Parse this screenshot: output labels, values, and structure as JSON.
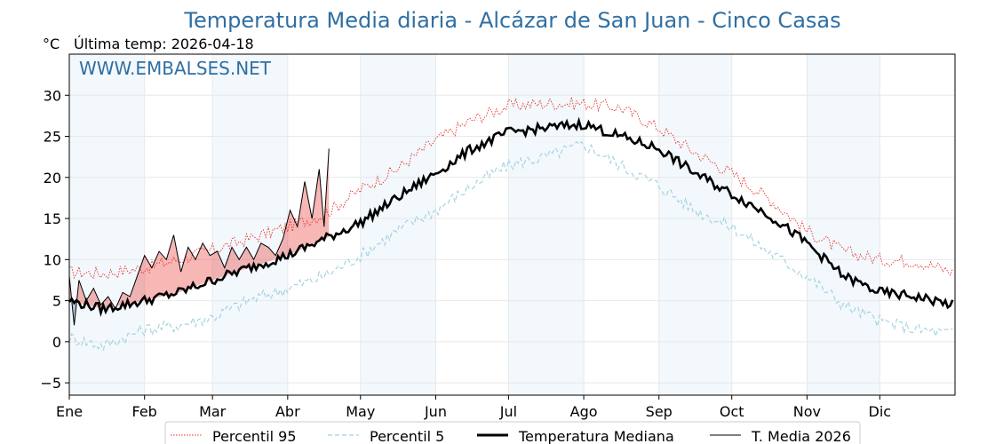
{
  "chart_data": {
    "type": "line",
    "title": "Temperatura Media diaria - Alcázar de San Juan - Cinco Casas",
    "unit_label": "°C",
    "subtitle": "Última temp: 2026-04-18",
    "watermark": "WWW.EMBALSES.NET",
    "ylim": [
      -6.5,
      35
    ],
    "yticks": [
      -5,
      0,
      5,
      10,
      15,
      20,
      25,
      30
    ],
    "ytick_labels": [
      "−5",
      "0",
      "5",
      "10",
      "15",
      "20",
      "25",
      "30"
    ],
    "months": [
      "Ene",
      "Feb",
      "Mar",
      "Abr",
      "May",
      "Jun",
      "Jul",
      "Ago",
      "Sep",
      "Oct",
      "Nov",
      "Dic"
    ],
    "month_start_days": [
      1,
      32,
      60,
      91,
      121,
      152,
      182,
      213,
      244,
      274,
      305,
      335
    ],
    "shaded_month_indices": [
      0,
      2,
      4,
      6,
      8,
      10
    ],
    "x_days": [
      1,
      15,
      32,
      46,
      60,
      75,
      91,
      106,
      121,
      136,
      152,
      167,
      182,
      197,
      213,
      228,
      244,
      259,
      274,
      289,
      305,
      320,
      335,
      350,
      365
    ],
    "series": [
      {
        "name": "Percentil 95",
        "style": "dotted",
        "color": "#e8302a",
        "values": [
          8.5,
          8.3,
          9.0,
          10.0,
          11.2,
          12.5,
          14.0,
          15.5,
          18.5,
          21.0,
          24.5,
          27.0,
          28.7,
          29.0,
          29.0,
          28.5,
          26.0,
          23.0,
          20.5,
          17.5,
          13.5,
          11.0,
          10.0,
          9.8,
          8.5
        ]
      },
      {
        "name": "Percentil 5",
        "style": "dashed",
        "color": "#9fd0e0",
        "values": [
          0.5,
          -0.5,
          1.5,
          2.0,
          3.0,
          5.0,
          6.5,
          8.0,
          10.5,
          13.5,
          16.0,
          19.0,
          21.5,
          22.5,
          24.0,
          21.5,
          19.0,
          16.0,
          14.0,
          11.0,
          8.0,
          4.5,
          2.5,
          1.5,
          1.0
        ]
      },
      {
        "name": "Temperatura Mediana",
        "style": "solid-thick",
        "color": "#000000",
        "values": [
          5.0,
          4.0,
          5.0,
          6.0,
          7.5,
          9.0,
          10.5,
          12.5,
          14.5,
          17.5,
          20.5,
          23.5,
          25.5,
          26.0,
          26.5,
          25.0,
          23.5,
          20.5,
          18.0,
          15.5,
          12.0,
          8.0,
          6.0,
          5.5,
          4.5
        ]
      }
    ],
    "current_year": {
      "name": "T. Media 2026",
      "style": "solid-thin",
      "color": "#000000",
      "above_color": "#e8302a",
      "below_color": "#2b6aa3",
      "days": [
        1,
        3,
        5,
        8,
        11,
        14,
        17,
        20,
        23,
        26,
        29,
        32,
        35,
        38,
        41,
        44,
        47,
        50,
        53,
        56,
        59,
        62,
        65,
        68,
        71,
        74,
        77,
        80,
        83,
        86,
        89,
        92,
        95,
        98,
        101,
        104,
        106,
        108
      ],
      "values": [
        8.0,
        2.0,
        7.5,
        5.0,
        6.5,
        4.5,
        5.5,
        4.0,
        6.0,
        5.5,
        8.0,
        10.5,
        9.0,
        11.0,
        10.0,
        13.0,
        8.5,
        11.5,
        10.0,
        12.0,
        10.5,
        11.0,
        9.0,
        11.5,
        10.0,
        11.5,
        10.0,
        12.0,
        11.5,
        10.5,
        12.5,
        16.0,
        14.0,
        19.5,
        15.0,
        21.0,
        14.0,
        23.5
      ]
    },
    "legend": [
      "Percentil 95",
      "Percentil 5",
      "Temperatura Mediana",
      "T. Media 2026"
    ],
    "legend_position": "bottom-center"
  }
}
